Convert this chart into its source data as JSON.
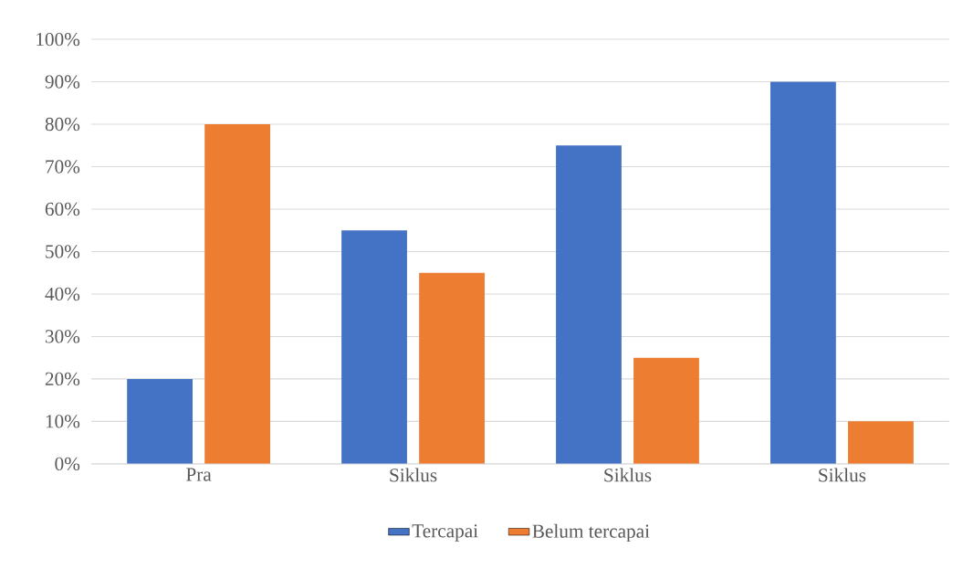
{
  "chart_data": {
    "type": "bar",
    "categories": [
      "Pra",
      "Siklus",
      "Siklus",
      "Siklus"
    ],
    "series": [
      {
        "name": "Tercapai",
        "color": "#4472c4",
        "values": [
          20,
          55,
          75,
          90
        ]
      },
      {
        "name": "Belum tercapai",
        "color": "#ed7d31",
        "values": [
          80,
          45,
          25,
          10
        ]
      }
    ],
    "ylim": [
      0,
      100
    ],
    "yticks": [
      {
        "value": 0,
        "label": "0%"
      },
      {
        "value": 10,
        "label": "10%"
      },
      {
        "value": 20,
        "label": "20%"
      },
      {
        "value": 30,
        "label": "30%"
      },
      {
        "value": 40,
        "label": "40%"
      },
      {
        "value": 50,
        "label": "50%"
      },
      {
        "value": 60,
        "label": "60%"
      },
      {
        "value": 70,
        "label": "70%"
      },
      {
        "value": 80,
        "label": "80%"
      },
      {
        "value": 90,
        "label": "90%"
      },
      {
        "value": 100,
        "label": "100%"
      }
    ],
    "grid": "y",
    "legend": "bottom"
  }
}
